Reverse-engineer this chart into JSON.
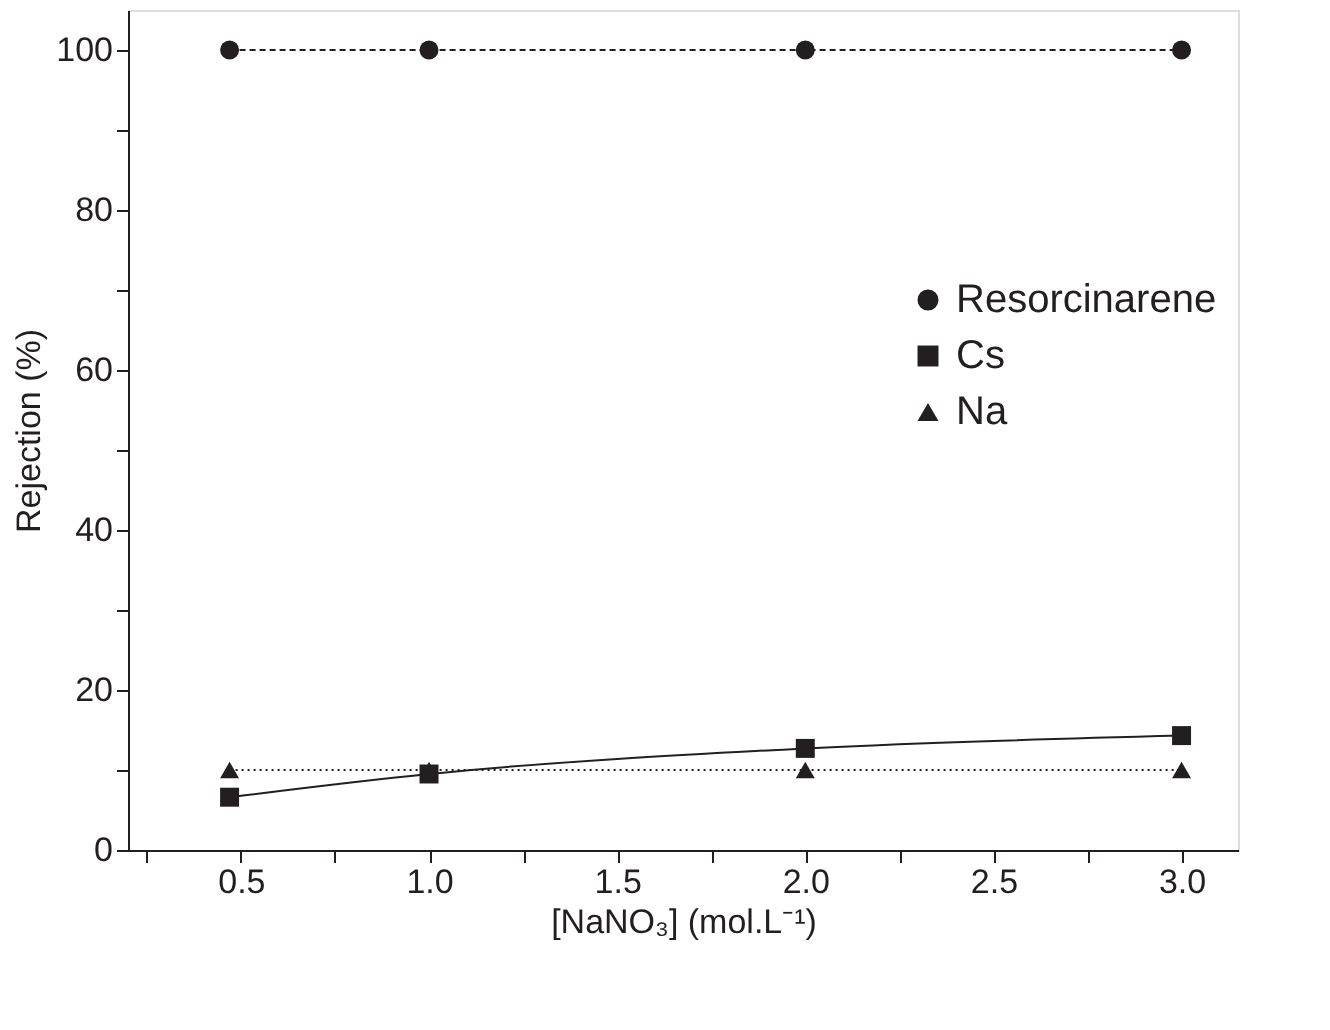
{
  "chart_data": {
    "type": "line",
    "xlabel": "[NaNO₃] (mol.L⁻¹)",
    "ylabel": "Rejection (%)",
    "xlim": [
      0.2,
      3.15
    ],
    "ylim": [
      0,
      105
    ],
    "xticks": [
      {
        "value": 0.25,
        "label": null
      },
      0.5,
      {
        "value": 0.75,
        "label": null
      },
      {
        "value": 1,
        "label": "1.0"
      },
      {
        "value": 1.25,
        "label": null
      },
      1.5,
      {
        "value": 1.75,
        "label": null
      },
      {
        "value": 2,
        "label": "2.0"
      },
      {
        "value": 2.25,
        "label": null
      },
      2.5,
      {
        "value": 2.75,
        "label": null
      },
      {
        "value": 3,
        "label": "3.0"
      }
    ],
    "yticks": [
      0,
      {
        "value": 10,
        "label": null
      },
      20,
      {
        "value": 30,
        "label": null
      },
      40,
      {
        "value": 50,
        "label": null
      },
      60,
      {
        "value": 70,
        "label": null
      },
      80,
      {
        "value": 90,
        "label": null
      },
      100
    ],
    "x": [
      0.47,
      1.0,
      2.0,
      3.0
    ],
    "grid": false,
    "legend": "right",
    "series": [
      {
        "name": "Resorcinarene",
        "color": "#231f20",
        "marker": "circle",
        "line_style": "dashed",
        "values": [
          100,
          100,
          100,
          100
        ]
      },
      {
        "name": "Cs",
        "color": "#231f20",
        "marker": "square",
        "line_style": "solid",
        "values": [
          6.6,
          9.5,
          12.7,
          14.3
        ]
      },
      {
        "name": "Na",
        "color": "#231f20",
        "marker": "triangle",
        "line_style": "dotted",
        "values": [
          10,
          10,
          10,
          10
        ]
      }
    ]
  }
}
